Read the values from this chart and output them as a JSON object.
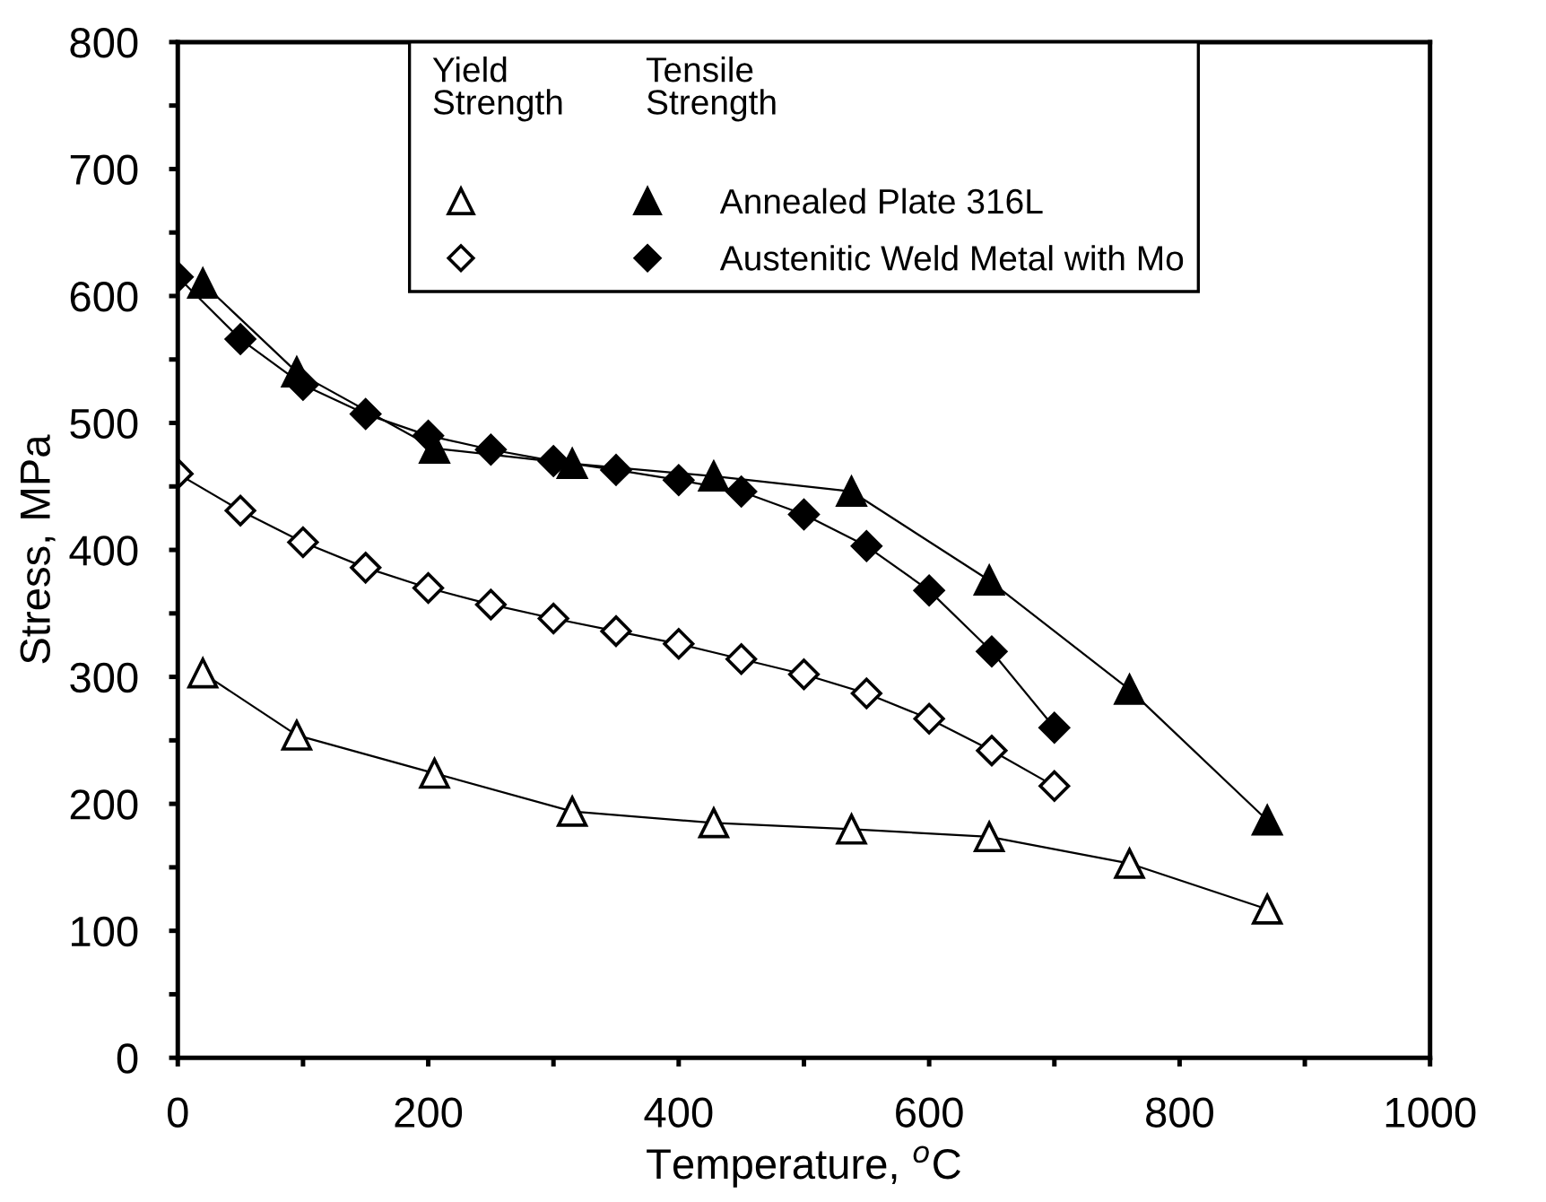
{
  "chart_data": {
    "type": "line",
    "xlabel": "Temperature, $^{o}$C",
    "ylabel": "Stress, MPa",
    "annotations": [
      "Yield\nStrength",
      "Tensile\nStrength"
    ],
    "xlim": [
      0,
      1000
    ],
    "ylim": [
      0,
      800
    ],
    "xticks": [
      0,
      {
        "value": 100,
        "label": null
      },
      200,
      {
        "value": 300,
        "label": null
      },
      400,
      {
        "value": 500,
        "label": null
      },
      600,
      {
        "value": 700,
        "label": null
      },
      800,
      {
        "value": 900,
        "label": null
      },
      1000
    ],
    "yticks": [
      0,
      {
        "value": 50,
        "label": null
      },
      100,
      {
        "value": 150,
        "label": null
      },
      200,
      {
        "value": 250,
        "label": null
      },
      300,
      {
        "value": 350,
        "label": null
      },
      400,
      {
        "value": 450,
        "label": null
      },
      500,
      {
        "value": 550,
        "label": null
      },
      600,
      {
        "value": 650,
        "label": null
      },
      700,
      {
        "value": 750,
        "label": null
      },
      800
    ],
    "grid": false,
    "legend": "top",
    "line_style": "solid",
    "series": [
      {
        "color": "#ffffff",
        "marker": "triangle",
        "x": [
          20,
          95,
          205,
          315,
          428,
          538,
          648,
          760,
          870
        ],
        "values": [
          303,
          254,
          224,
          194,
          185,
          180,
          174,
          153,
          117
        ]
      },
      {
        "name": "Annealed Plate 316L",
        "color": "#000000",
        "marker": "triangle",
        "x": [
          20,
          95,
          205,
          315,
          428,
          538,
          648,
          760,
          870
        ],
        "values": [
          610,
          540,
          480,
          468,
          458,
          446,
          376,
          290,
          187
        ]
      },
      {
        "color": "#ffffff",
        "marker": "diamond",
        "x": [
          0,
          50,
          100,
          150,
          200,
          250,
          300,
          350,
          400,
          450,
          500,
          550,
          600,
          650,
          700
        ],
        "values": [
          460,
          431,
          406,
          386,
          370,
          357,
          346,
          336,
          326,
          314,
          302,
          287,
          267,
          242,
          214
        ]
      },
      {
        "name": "Austenitic Weld Metal with Mo",
        "color": "#000000",
        "marker": "diamond",
        "x": [
          0,
          50,
          100,
          150,
          200,
          250,
          300,
          350,
          400,
          450,
          500,
          550,
          600,
          650,
          700
        ],
        "values": [
          615,
          566,
          530,
          507,
          490,
          479,
          470,
          463,
          455,
          446,
          428,
          403,
          368,
          320,
          260
        ]
      }
    ]
  }
}
